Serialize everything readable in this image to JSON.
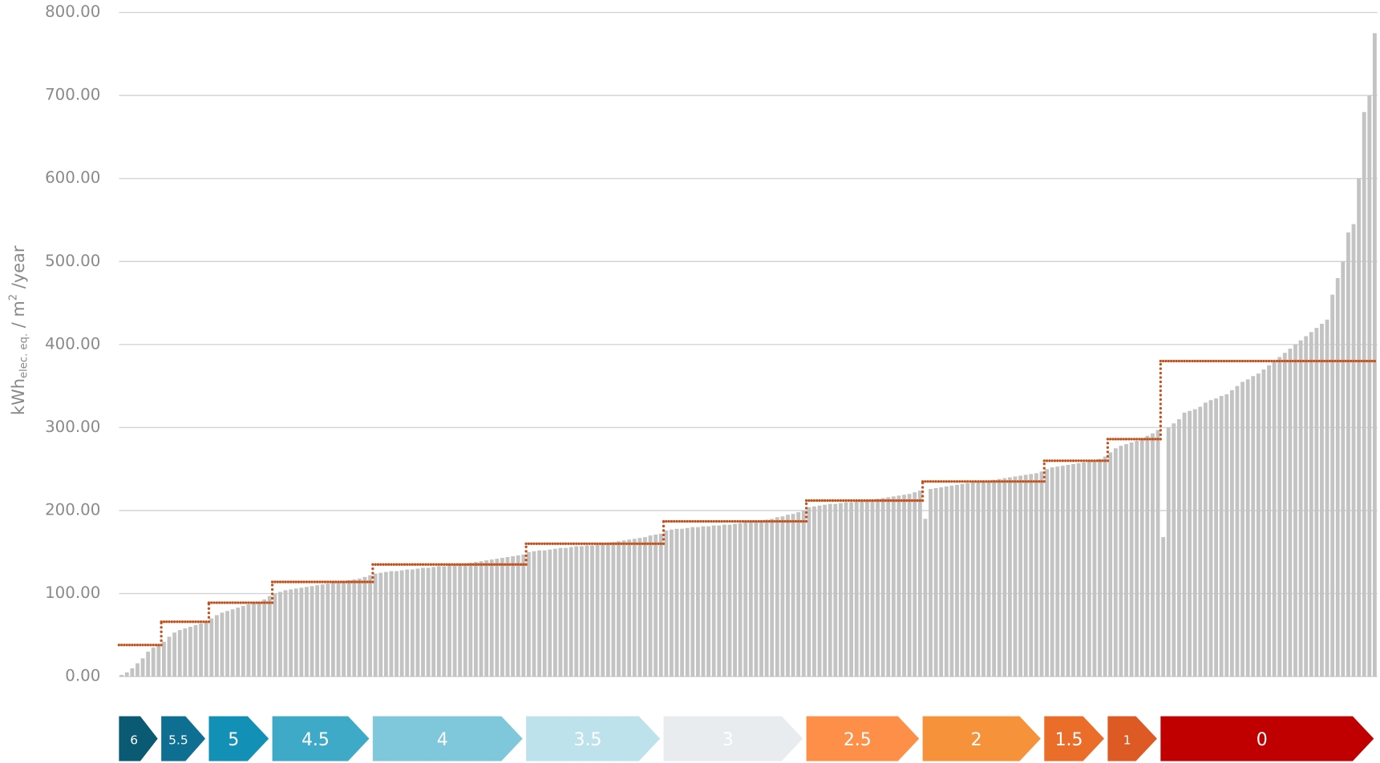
{
  "chart_data": {
    "type": "bar",
    "y_label": {
      "main": "kWh",
      "sub": "elec. eq.",
      "mid": " / m",
      "sup": "2",
      "tail": " /year"
    },
    "ylim": [
      0,
      800
    ],
    "yticks": [
      {
        "value": 0,
        "label": "0.00"
      },
      {
        "value": 100,
        "label": "100.00"
      },
      {
        "value": 200,
        "label": "200.00"
      },
      {
        "value": 300,
        "label": "300.00"
      },
      {
        "value": 400,
        "label": "400.00"
      },
      {
        "value": 500,
        "label": "500.00"
      },
      {
        "value": 600,
        "label": "600.00"
      },
      {
        "value": 700,
        "label": "700.00"
      },
      {
        "value": 800,
        "label": "800.00"
      }
    ],
    "grid": true,
    "series": [
      {
        "type": "bar",
        "color": "#c3c3c3",
        "values": [
          2,
          5,
          10,
          16,
          22,
          30,
          35,
          38,
          42,
          48,
          53,
          56,
          58,
          60,
          62,
          64,
          66,
          70,
          74,
          77,
          79,
          81,
          83,
          85,
          87,
          88,
          90,
          93,
          97,
          100,
          102,
          104,
          105,
          106,
          107,
          108,
          109,
          110,
          111,
          112,
          113,
          114,
          115,
          116,
          117,
          118,
          120,
          122,
          124,
          125,
          126,
          127,
          127,
          128,
          129,
          129,
          130,
          131,
          131,
          132,
          133,
          133,
          134,
          135,
          135,
          136,
          137,
          138,
          139,
          140,
          141,
          142,
          143,
          144,
          145,
          146,
          147,
          150,
          151,
          152,
          152,
          153,
          154,
          155,
          155,
          156,
          157,
          157,
          158,
          158,
          159,
          160,
          161,
          162,
          163,
          164,
          165,
          166,
          167,
          168,
          170,
          171,
          172,
          176,
          177,
          178,
          178,
          179,
          180,
          180,
          181,
          181,
          182,
          182,
          183,
          183,
          184,
          185,
          186,
          186,
          187,
          188,
          189,
          190,
          192,
          193,
          195,
          196,
          198,
          200,
          204,
          205,
          206,
          207,
          208,
          208,
          209,
          210,
          210,
          211,
          212,
          212,
          213,
          214,
          215,
          216,
          217,
          218,
          219,
          220,
          222,
          224,
          190,
          226,
          227,
          228,
          229,
          230,
          231,
          232,
          233,
          234,
          234,
          235,
          236,
          237,
          238,
          239,
          240,
          241,
          242,
          243,
          244,
          245,
          247,
          250,
          252,
          253,
          254,
          255,
          256,
          257,
          258,
          259,
          260,
          262,
          265,
          270,
          275,
          278,
          280,
          282,
          284,
          287,
          290,
          293,
          297,
          168,
          300,
          305,
          310,
          318,
          320,
          322,
          325,
          330,
          333,
          335,
          338,
          340,
          345,
          350,
          355,
          358,
          362,
          365,
          370,
          375,
          380,
          385,
          390,
          395,
          400,
          405,
          410,
          415,
          420,
          425,
          430,
          460,
          480,
          500,
          535,
          545,
          600,
          680,
          700,
          775
        ]
      },
      {
        "type": "step",
        "color": "#c4501a",
        "values": [
          38,
          38,
          38,
          38,
          38,
          38,
          38,
          38,
          66,
          66,
          66,
          66,
          66,
          66,
          66,
          66,
          66,
          89,
          89,
          89,
          89,
          89,
          89,
          89,
          89,
          89,
          89,
          89,
          89,
          114,
          114,
          114,
          114,
          114,
          114,
          114,
          114,
          114,
          114,
          114,
          114,
          114,
          114,
          114,
          114,
          114,
          114,
          114,
          135,
          135,
          135,
          135,
          135,
          135,
          135,
          135,
          135,
          135,
          135,
          135,
          135,
          135,
          135,
          135,
          135,
          135,
          135,
          135,
          135,
          135,
          135,
          135,
          135,
          135,
          135,
          135,
          135,
          160,
          160,
          160,
          160,
          160,
          160,
          160,
          160,
          160,
          160,
          160,
          160,
          160,
          160,
          160,
          160,
          160,
          160,
          160,
          160,
          160,
          160,
          160,
          160,
          160,
          160,
          187,
          187,
          187,
          187,
          187,
          187,
          187,
          187,
          187,
          187,
          187,
          187,
          187,
          187,
          187,
          187,
          187,
          187,
          187,
          187,
          187,
          187,
          187,
          187,
          187,
          187,
          187,
          212,
          212,
          212,
          212,
          212,
          212,
          212,
          212,
          212,
          212,
          212,
          212,
          212,
          212,
          212,
          212,
          212,
          212,
          212,
          212,
          212,
          212,
          235,
          235,
          235,
          235,
          235,
          235,
          235,
          235,
          235,
          235,
          235,
          235,
          235,
          235,
          235,
          235,
          235,
          235,
          235,
          235,
          235,
          235,
          235,
          260,
          260,
          260,
          260,
          260,
          260,
          260,
          260,
          260,
          260,
          260,
          260,
          286,
          286,
          286,
          286,
          286,
          286,
          286,
          286,
          286,
          286,
          380,
          380,
          380,
          380,
          380,
          380,
          380,
          380,
          380,
          380,
          380,
          380,
          380,
          380,
          380,
          380,
          380,
          380,
          380,
          380,
          380,
          380,
          380,
          380,
          380,
          380,
          380,
          380,
          380,
          380,
          380,
          380,
          380,
          380,
          380,
          380,
          380,
          380,
          380,
          380,
          380
        ]
      }
    ],
    "ratings": [
      {
        "label": "6",
        "color": "#0b5a73"
      },
      {
        "label": "5.5",
        "color": "#0f6f92"
      },
      {
        "label": "5",
        "color": "#1390b5"
      },
      {
        "label": "4.5",
        "color": "#3eaac8"
      },
      {
        "label": "4",
        "color": "#7fc7da"
      },
      {
        "label": "3.5",
        "color": "#bde2ec"
      },
      {
        "label": "3",
        "color": "#e8ecef"
      },
      {
        "label": "2.5",
        "color": "#fd8f48"
      },
      {
        "label": "2",
        "color": "#f5923a"
      },
      {
        "label": "1.5",
        "color": "#ea6e2a"
      },
      {
        "label": "1",
        "color": "#dd5a25"
      },
      {
        "label": "0",
        "color": "#c00000"
      }
    ]
  }
}
